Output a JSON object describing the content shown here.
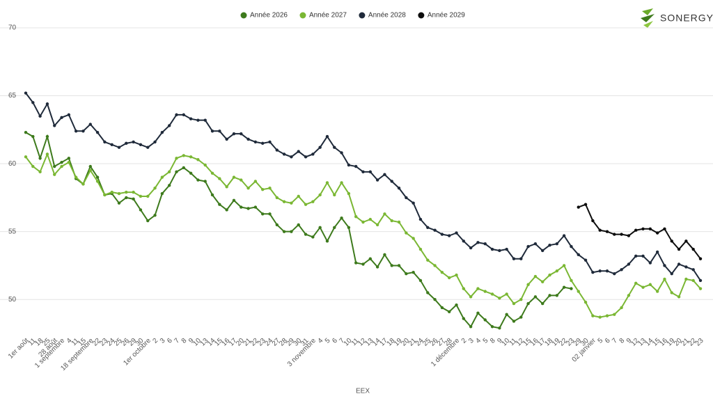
{
  "brand": "SONERGY",
  "chart_data": {
    "type": "line",
    "x_label": "EEX",
    "categories": [
      "1er août",
      "11",
      "18",
      "25",
      "28 août",
      "1 septembre",
      "4",
      "11",
      "15",
      "18 septembre",
      "22",
      "23",
      "24",
      "25",
      "26",
      "29",
      "30",
      "1er octobre",
      "2",
      "3",
      "6",
      "7",
      "8",
      "9",
      "10",
      "13",
      "14",
      "15",
      "16",
      "17",
      "20",
      "21",
      "22",
      "23",
      "24",
      "27",
      "28",
      "29",
      "30",
      "31",
      "3 novembre",
      "4",
      "5",
      "6",
      "7",
      "10",
      "11",
      "12",
      "13",
      "14",
      "17",
      "18",
      "19",
      "20",
      "21",
      "24",
      "25",
      "26",
      "27",
      "28",
      "1 décembre",
      "2",
      "3",
      "4",
      "5",
      "8",
      "9",
      "10",
      "11",
      "12",
      "15",
      "16",
      "17",
      "18",
      "19",
      "22",
      "23",
      "29",
      "30",
      "02 janvier",
      "5",
      "6",
      "7",
      "8",
      "9",
      "12",
      "13",
      "14",
      "15",
      "16",
      "19",
      "20",
      "21",
      "22",
      "23"
    ],
    "series": [
      {
        "name": "Année 2026",
        "color": "#3d7a1c",
        "values": [
          62.3,
          62.0,
          60.4,
          62.0,
          59.8,
          60.1,
          60.4,
          58.9,
          58.5,
          59.8,
          59.0,
          57.7,
          57.8,
          57.1,
          57.5,
          57.4,
          56.6,
          55.8,
          56.2,
          57.8,
          58.4,
          59.4,
          59.7,
          59.3,
          58.8,
          58.7,
          57.7,
          57.0,
          56.6,
          57.3,
          56.8,
          56.7,
          56.8,
          56.3,
          56.3,
          55.5,
          55.0,
          55.0,
          55.5,
          54.8,
          54.6,
          55.3,
          54.3,
          55.3,
          56.0,
          55.3,
          52.7,
          52.6,
          53.0,
          52.4,
          53.3,
          52.5,
          52.5,
          51.9,
          52.0,
          51.4,
          50.5,
          50.0,
          49.4,
          49.1,
          49.6,
          48.6,
          48.0,
          49.0,
          48.5,
          48.0,
          47.9,
          48.9,
          48.4,
          48.7,
          49.7,
          50.2,
          49.7,
          50.3,
          50.3,
          50.9,
          50.8,
          null,
          null,
          null,
          null,
          null,
          null,
          null,
          null,
          null,
          null,
          null,
          null,
          null,
          null,
          null,
          null,
          null,
          null
        ]
      },
      {
        "name": "Année 2027",
        "color": "#7ab733",
        "values": [
          60.5,
          59.8,
          59.4,
          60.7,
          59.2,
          59.8,
          60.1,
          59.0,
          58.5,
          59.5,
          58.7,
          57.7,
          57.9,
          57.8,
          57.9,
          57.9,
          57.6,
          57.6,
          58.2,
          59.0,
          59.4,
          60.4,
          60.6,
          60.5,
          60.3,
          59.9,
          59.3,
          58.9,
          58.3,
          59.0,
          58.8,
          58.2,
          58.7,
          58.1,
          58.2,
          57.5,
          57.2,
          57.1,
          57.6,
          57.0,
          57.2,
          57.7,
          58.6,
          57.7,
          58.6,
          57.8,
          56.1,
          55.7,
          55.9,
          55.5,
          56.3,
          55.8,
          55.7,
          54.9,
          54.5,
          53.7,
          52.9,
          52.5,
          52.0,
          51.6,
          51.8,
          50.8,
          50.2,
          50.8,
          50.6,
          50.4,
          50.1,
          50.4,
          49.7,
          50.0,
          51.1,
          51.7,
          51.3,
          51.8,
          52.1,
          52.5,
          51.4,
          50.6,
          49.8,
          48.8,
          48.7,
          48.8,
          48.9,
          49.4,
          50.3,
          51.2,
          50.9,
          51.1,
          50.6,
          51.5,
          50.5,
          50.2,
          51.5,
          51.4,
          50.8
        ]
      },
      {
        "name": "Année 2028",
        "color": "#1f2a3a",
        "values": [
          65.2,
          64.5,
          63.5,
          64.4,
          62.8,
          63.4,
          63.6,
          62.4,
          62.4,
          62.9,
          62.3,
          61.6,
          61.4,
          61.2,
          61.5,
          61.6,
          61.4,
          61.2,
          61.6,
          62.3,
          62.8,
          63.6,
          63.6,
          63.3,
          63.2,
          63.2,
          62.4,
          62.4,
          61.8,
          62.2,
          62.2,
          61.8,
          61.6,
          61.5,
          61.6,
          61.0,
          60.7,
          60.5,
          60.9,
          60.5,
          60.7,
          61.2,
          62.0,
          61.2,
          60.8,
          59.9,
          59.8,
          59.4,
          59.4,
          58.8,
          59.2,
          58.7,
          58.2,
          57.5,
          57.1,
          55.9,
          55.3,
          55.1,
          54.8,
          54.7,
          54.9,
          54.3,
          53.8,
          54.2,
          54.1,
          53.7,
          53.6,
          53.7,
          53.0,
          53.0,
          53.9,
          54.1,
          53.6,
          54.0,
          54.1,
          54.7,
          53.9,
          53.3,
          52.9,
          52.0,
          52.1,
          52.1,
          51.9,
          52.2,
          52.6,
          53.2,
          53.2,
          52.7,
          53.5,
          52.5,
          51.9,
          52.6,
          52.4,
          52.2,
          51.4
        ]
      },
      {
        "name": "Année 2029",
        "color": "#0d0d0d",
        "values": [
          null,
          null,
          null,
          null,
          null,
          null,
          null,
          null,
          null,
          null,
          null,
          null,
          null,
          null,
          null,
          null,
          null,
          null,
          null,
          null,
          null,
          null,
          null,
          null,
          null,
          null,
          null,
          null,
          null,
          null,
          null,
          null,
          null,
          null,
          null,
          null,
          null,
          null,
          null,
          null,
          null,
          null,
          null,
          null,
          null,
          null,
          null,
          null,
          null,
          null,
          null,
          null,
          null,
          null,
          null,
          null,
          null,
          null,
          null,
          null,
          null,
          null,
          null,
          null,
          null,
          null,
          null,
          null,
          null,
          null,
          null,
          null,
          null,
          null,
          null,
          null,
          null,
          56.8,
          57.0,
          55.8,
          55.1,
          55.0,
          54.8,
          54.8,
          54.7,
          55.1,
          55.2,
          55.2,
          54.9,
          55.2,
          54.3,
          53.7,
          54.3,
          53.7,
          53.0
        ]
      }
    ],
    "ylim": [
      47.5,
      70
    ],
    "yticks": [
      50,
      55,
      60,
      65,
      70
    ],
    "grid": true,
    "legend": "top"
  }
}
